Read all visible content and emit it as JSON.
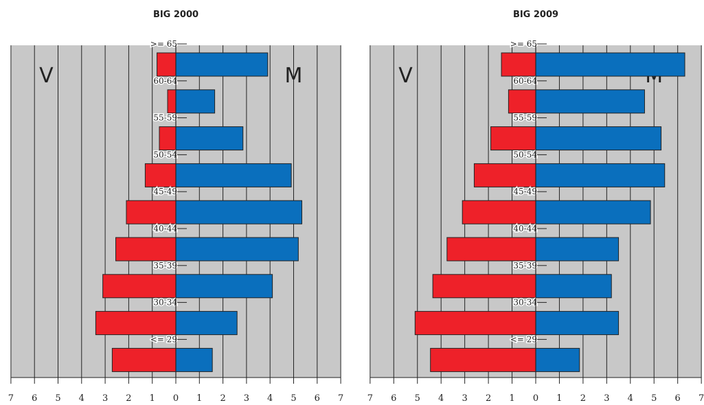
{
  "colors": {
    "plot_background": "#c8c8c8",
    "grid": "#222222",
    "female_bar": "#ee2129",
    "male_bar": "#0a6fbd",
    "text": "#222222"
  },
  "chart_data": [
    {
      "type": "bar",
      "orientation": "horizontal-diverging",
      "title": "BIG 2000",
      "left_side_label": "V",
      "right_side_label": "M",
      "categories": [
        ">= 65",
        "60-64",
        "55-59",
        "50-54",
        "45-49",
        "40-44",
        "35-39",
        "30-34",
        "<= 29"
      ],
      "series": [
        {
          "name": "V",
          "values": [
            0.8,
            0.35,
            0.7,
            1.3,
            2.1,
            2.55,
            3.1,
            3.4,
            2.7
          ]
        },
        {
          "name": "M",
          "values": [
            3.9,
            1.65,
            2.85,
            4.9,
            5.35,
            5.2,
            4.1,
            2.6,
            1.55
          ]
        }
      ],
      "xlim": [
        -7,
        7
      ],
      "tick_labels": [
        "7",
        "6",
        "5",
        "4",
        "3",
        "2",
        "1",
        "0",
        "1",
        "2",
        "3",
        "4",
        "5",
        "6",
        "7"
      ],
      "grid": true
    },
    {
      "type": "bar",
      "orientation": "horizontal-diverging",
      "title": "BIG 2009",
      "left_side_label": "V",
      "right_side_label": "M",
      "categories": [
        ">= 65",
        "60-64",
        "55-59",
        "50-54",
        "45-49",
        "40-44",
        "35-39",
        "30-34",
        "<= 29"
      ],
      "series": [
        {
          "name": "V",
          "values": [
            1.45,
            1.15,
            1.9,
            2.6,
            3.1,
            3.75,
            4.35,
            5.1,
            4.45
          ]
        },
        {
          "name": "M",
          "values": [
            6.3,
            4.6,
            5.3,
            5.45,
            4.85,
            3.5,
            3.2,
            3.5,
            1.85
          ]
        }
      ],
      "xlim": [
        -7,
        7
      ],
      "tick_labels": [
        "7",
        "6",
        "5",
        "4",
        "3",
        "2",
        "1",
        "0",
        "1",
        "2",
        "3",
        "4",
        "5",
        "6",
        "7"
      ],
      "grid": true
    }
  ]
}
